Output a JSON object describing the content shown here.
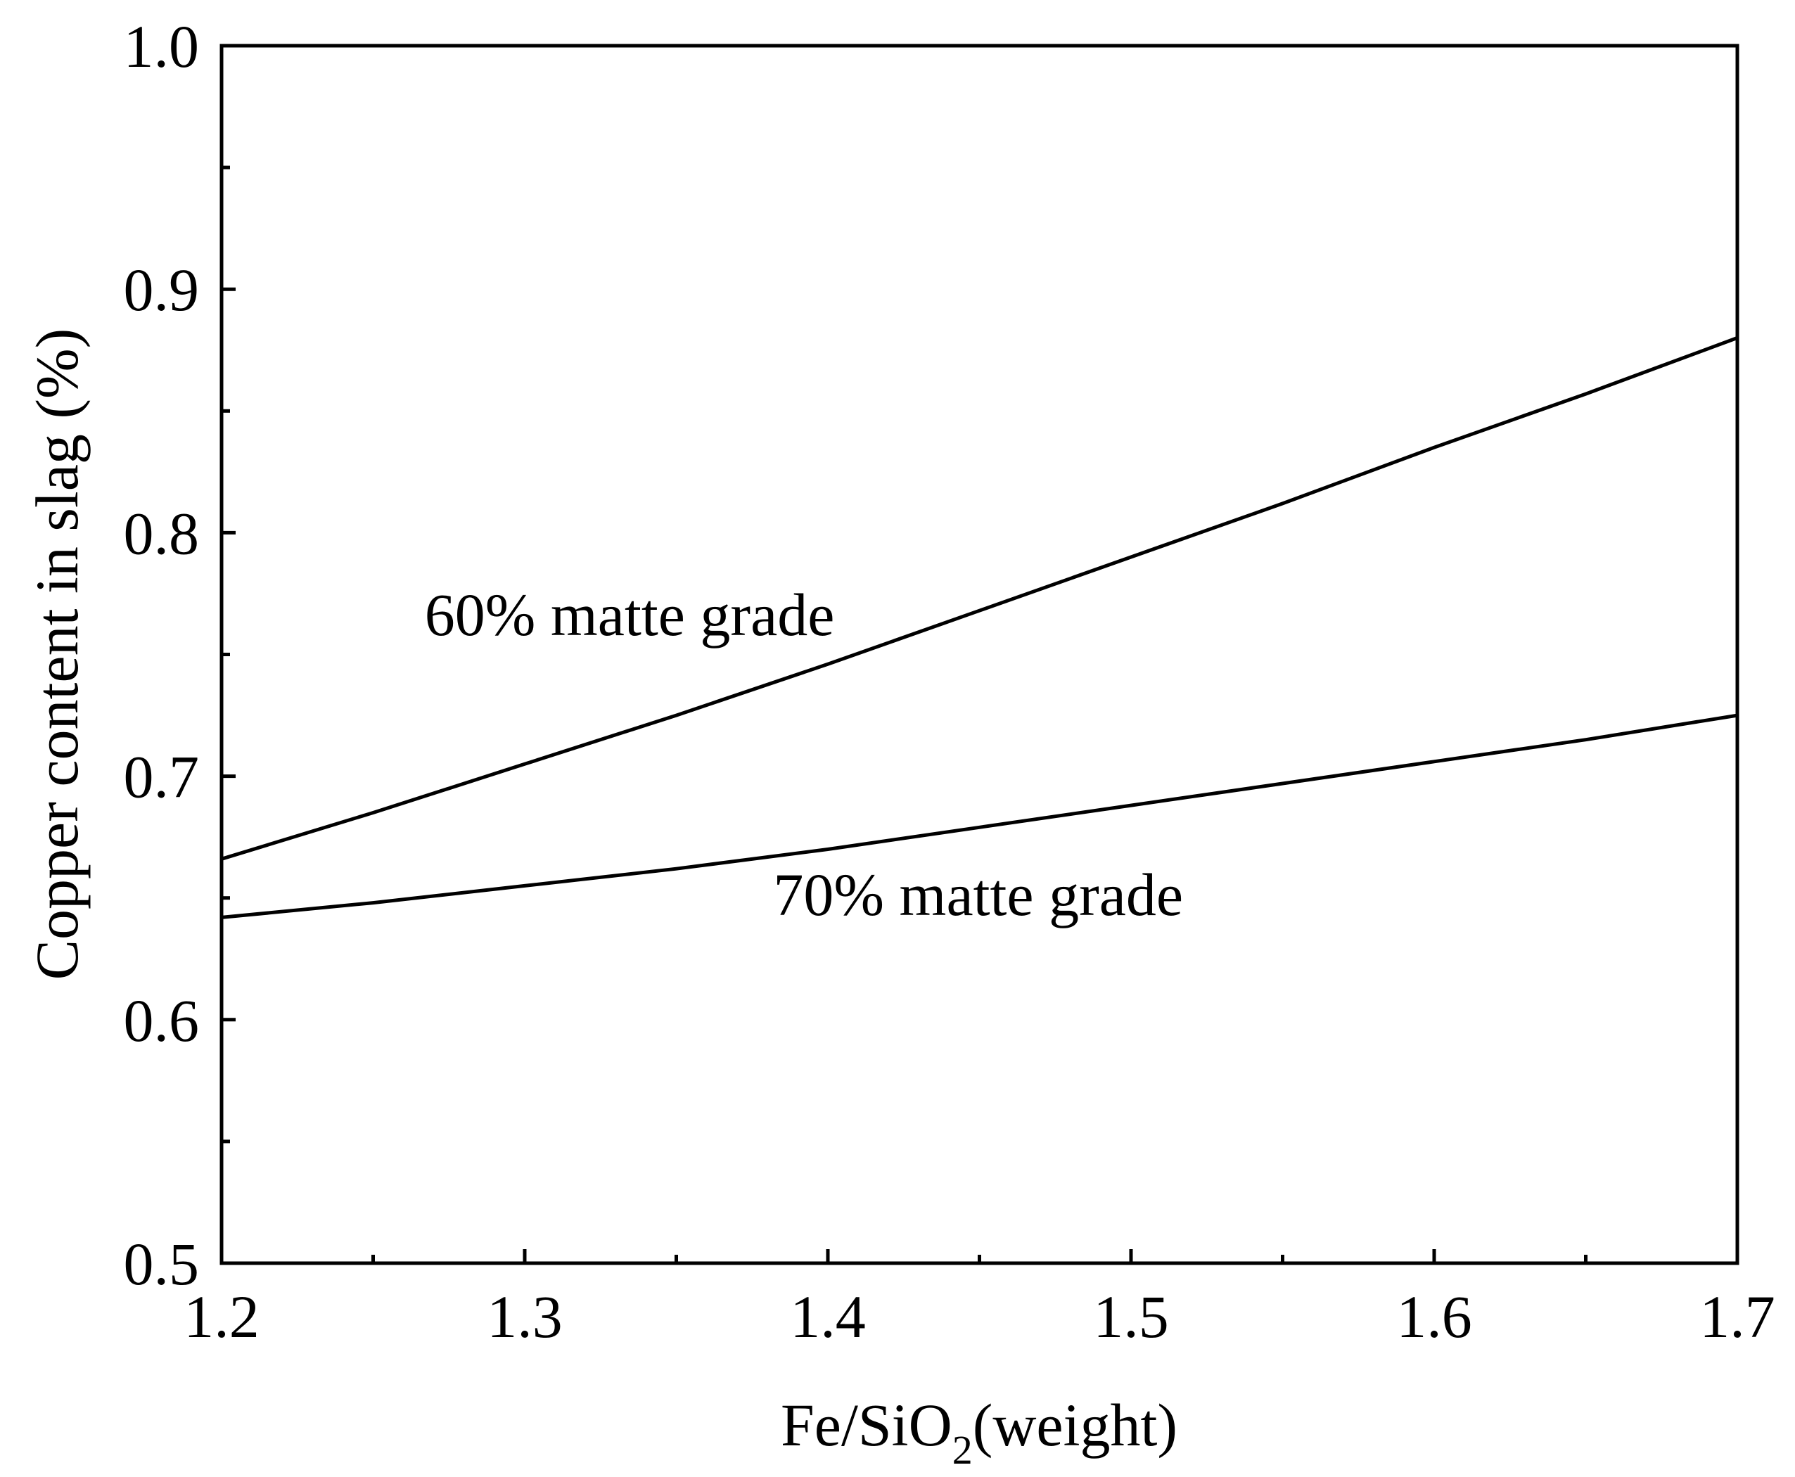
{
  "chart_data": {
    "type": "line",
    "title": "",
    "xlabel": {
      "prefix": "Fe/SiO",
      "subscript": "2",
      "suffix": "(weight)"
    },
    "ylabel": "Copper content in slag (%)",
    "xlim": [
      1.2,
      1.7
    ],
    "ylim": [
      0.5,
      1.0
    ],
    "x_ticks": [
      1.2,
      1.3,
      1.4,
      1.5,
      1.6,
      1.7
    ],
    "x_tick_labels": [
      "1.2",
      "1.3",
      "1.4",
      "1.5",
      "1.6",
      "1.7"
    ],
    "y_ticks": [
      0.5,
      0.6,
      0.7,
      0.8,
      0.9,
      1.0
    ],
    "y_tick_labels": [
      "0.5",
      "0.6",
      "0.7",
      "0.8",
      "0.9",
      "1.0"
    ],
    "x_minor_ticks": [
      1.25,
      1.35,
      1.45,
      1.55,
      1.65
    ],
    "y_minor_ticks": [
      0.55,
      0.65,
      0.75,
      0.85,
      0.95
    ],
    "grid": false,
    "legend": "none",
    "series": [
      {
        "name": "60% matte grade",
        "label": "60% matte grade",
        "label_anchor": {
          "x": 1.267,
          "y": 0.758
        },
        "x": [
          1.2,
          1.25,
          1.3,
          1.35,
          1.4,
          1.45,
          1.5,
          1.55,
          1.6,
          1.65,
          1.7
        ],
        "values": [
          0.666,
          0.685,
          0.705,
          0.725,
          0.746,
          0.768,
          0.79,
          0.812,
          0.835,
          0.857,
          0.88
        ]
      },
      {
        "name": "70% matte grade",
        "label": "70% matte grade",
        "label_anchor": {
          "x": 1.382,
          "y": 0.643
        },
        "x": [
          1.2,
          1.25,
          1.3,
          1.35,
          1.4,
          1.45,
          1.5,
          1.55,
          1.6,
          1.65,
          1.7
        ],
        "values": [
          0.642,
          0.648,
          0.655,
          0.662,
          0.67,
          0.679,
          0.688,
          0.697,
          0.706,
          0.715,
          0.725
        ]
      }
    ]
  }
}
